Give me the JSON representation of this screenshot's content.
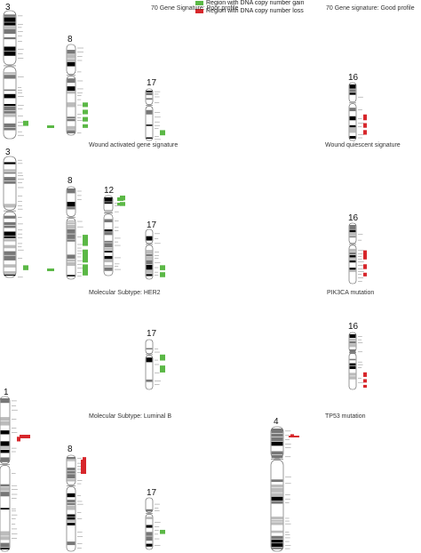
{
  "legend": {
    "gain_label": "Region with DNA copy number gain",
    "loss_label": "Region with DNA copy number loss",
    "gain_color": "#5bb846",
    "loss_color": "#d7262b"
  },
  "panels": {
    "p1_title": "70 Gene Signature: Poor profile",
    "p2_title": "70 Gene signature: Good profile",
    "p3_title": "Wound activated gene signature",
    "p4_title": "Wound quiescent signature",
    "p5_title": "Molecular Subtype: HER2",
    "p6_title": "PIK3CA mutation",
    "p7_title": "Molecular Subtype: Luminal B",
    "p8_title": "TP53 mutation"
  },
  "chromosomes": {
    "c3a": "3",
    "c8a": "8",
    "c17a": "17",
    "c16a": "16",
    "c3b": "3",
    "c8b": "8",
    "c12b": "12",
    "c17b": "17",
    "c16b": "16",
    "c17c": "17",
    "c16c": "16",
    "c1d": "1",
    "c8d": "8",
    "c17d": "17",
    "c4d": "4"
  }
}
